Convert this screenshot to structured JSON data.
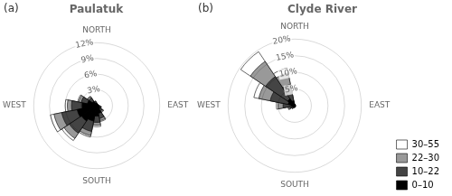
{
  "chart_data": [
    {
      "type": "windrose",
      "title": "Paulatuk",
      "annotations": [
        "(a)"
      ],
      "categories": [
        "NORTH",
        null,
        null,
        null,
        "EAST",
        null,
        null,
        null,
        "SOUTH",
        null,
        null,
        null,
        "WEST",
        null,
        null,
        null
      ],
      "series": [
        {
          "name": "0–10",
          "color": "#000000",
          "values": [
            0.3,
            0.2,
            0.2,
            0.2,
            0.3,
            0.5,
            0.8,
            1.5,
            2.0,
            3.0,
            3.5,
            3.8,
            2.8,
            1.8,
            1.0,
            0.5
          ]
        },
        {
          "name": "10–22",
          "color": "#444444",
          "values": [
            0.2,
            0.1,
            0.1,
            0.1,
            0.2,
            0.3,
            0.5,
            1.0,
            1.2,
            2.0,
            2.8,
            3.0,
            2.0,
            1.2,
            0.8,
            0.3
          ]
        },
        {
          "name": "22–30",
          "color": "#999999",
          "values": [
            0.0,
            0.0,
            0.0,
            0.0,
            0.0,
            0.1,
            0.2,
            0.4,
            0.5,
            0.8,
            1.2,
            1.5,
            0.8,
            0.5,
            0.3,
            0.1
          ]
        },
        {
          "name": "30–55",
          "color": "#ffffff",
          "values": [
            0.0,
            0.0,
            0.0,
            0.0,
            0.0,
            0.0,
            0.1,
            0.2,
            0.3,
            0.3,
            0.5,
            0.7,
            0.4,
            0.2,
            0.1,
            0.0
          ]
        }
      ],
      "stacked": true,
      "ylim": [
        0,
        12
      ],
      "yticks": [
        {
          "value": 3,
          "label": "3%"
        },
        {
          "value": 6,
          "label": "6%"
        },
        {
          "value": 9,
          "label": "9%"
        },
        {
          "value": 12,
          "label": "12%"
        }
      ],
      "grid": true
    },
    {
      "type": "windrose",
      "title": "Clyde River",
      "annotations": [
        "(b)"
      ],
      "categories": [
        "NORTH",
        null,
        null,
        null,
        "EAST",
        null,
        null,
        null,
        "SOUTH",
        null,
        null,
        null,
        "WEST",
        null,
        null,
        null
      ],
      "series": [
        {
          "name": "0–10",
          "color": "#000000",
          "values": [
            0.3,
            0.2,
            0.1,
            0.1,
            0.2,
            0.2,
            0.2,
            0.2,
            0.3,
            0.3,
            0.4,
            0.5,
            1.0,
            2.0,
            2.5,
            1.5
          ]
        },
        {
          "name": "10–22",
          "color": "#444444",
          "values": [
            0.2,
            0.1,
            0.1,
            0.1,
            0.1,
            0.1,
            0.1,
            0.1,
            0.2,
            0.2,
            0.5,
            1.0,
            2.5,
            5.5,
            8.0,
            5.0
          ]
        },
        {
          "name": "22–30",
          "color": "#999999",
          "values": [
            0.0,
            0.0,
            0.0,
            0.0,
            0.0,
            0.0,
            0.0,
            0.0,
            0.0,
            0.1,
            0.2,
            0.5,
            1.5,
            3.5,
            5.5,
            3.5
          ]
        },
        {
          "name": "30–55",
          "color": "#ffffff",
          "values": [
            0.0,
            0.0,
            0.0,
            0.0,
            0.0,
            0.0,
            0.0,
            0.0,
            0.0,
            0.0,
            0.0,
            0.1,
            0.5,
            1.5,
            3.5,
            1.5
          ]
        }
      ],
      "stacked": true,
      "ylim": [
        0,
        20
      ],
      "yticks": [
        {
          "value": 5,
          "label": "5%"
        },
        {
          "value": 10,
          "label": "10%"
        },
        {
          "value": 15,
          "label": "15%"
        },
        {
          "value": 20,
          "label": "20%"
        }
      ],
      "grid": true,
      "legend": "lower right"
    }
  ]
}
